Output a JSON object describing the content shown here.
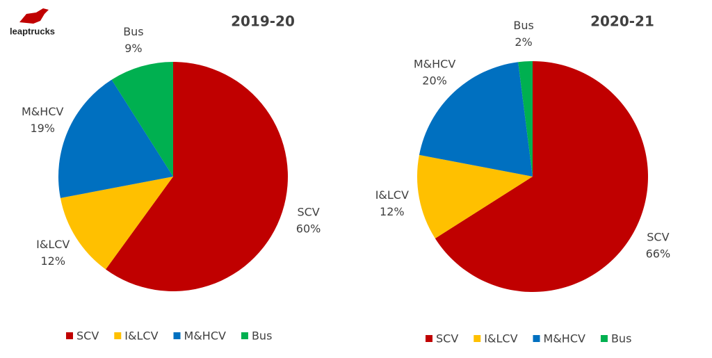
{
  "logo": {
    "text": "leaptrucks"
  },
  "chart_data": [
    {
      "type": "pie",
      "title": "2019-20",
      "categories": [
        "SCV",
        "I&LCV",
        "M&HCV",
        "Bus"
      ],
      "values": [
        60,
        12,
        19,
        9
      ],
      "value_labels": [
        "60%",
        "12%",
        "19%",
        "9%"
      ],
      "colors": [
        "#c00000",
        "#ffc000",
        "#0070c0",
        "#00b050"
      ],
      "legend": "bottom"
    },
    {
      "type": "pie",
      "title": "2020-21",
      "categories": [
        "SCV",
        "I&LCV",
        "M&HCV",
        "Bus"
      ],
      "values": [
        66,
        12,
        20,
        2
      ],
      "value_labels": [
        "66%",
        "12%",
        "20%",
        "2%"
      ],
      "colors": [
        "#c00000",
        "#ffc000",
        "#0070c0",
        "#00b050"
      ],
      "legend": "bottom"
    }
  ]
}
